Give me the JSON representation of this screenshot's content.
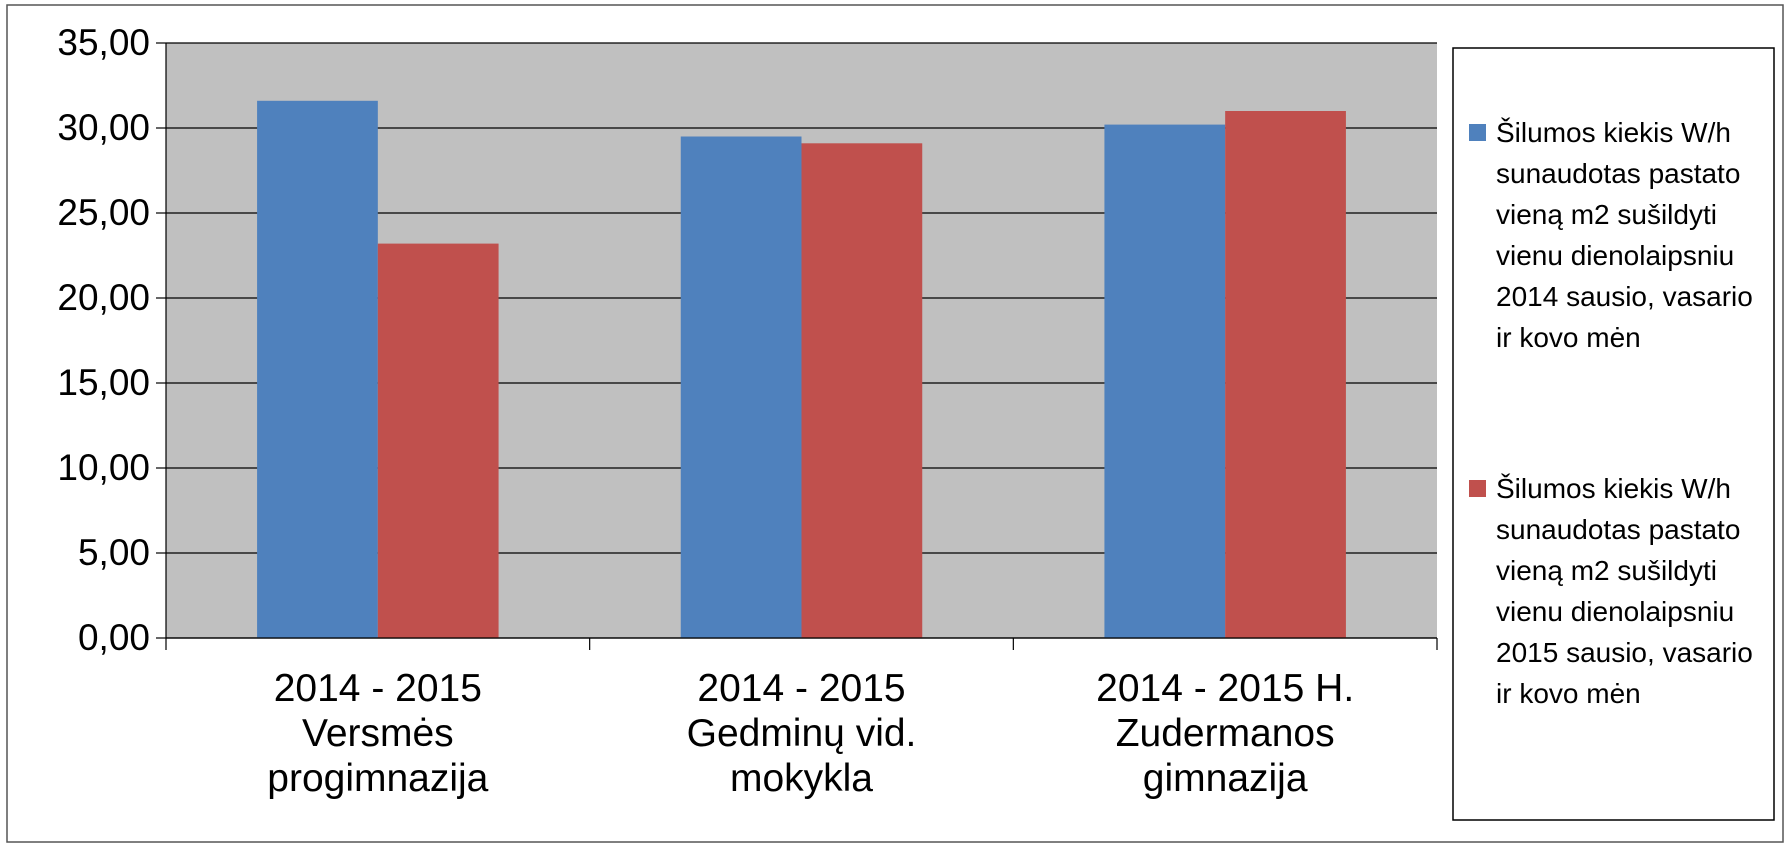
{
  "chart_data": {
    "type": "bar",
    "categories": [
      "2014 - 2015\nVersmės\nprogimnazija",
      "2014 - 2015\nGedminų vid.\nmokykla",
      "2014 - 2015 H.\nZudermanos\ngimnazija"
    ],
    "series": [
      {
        "name": "Šilumos kiekis W/h sunaudotas pastato vieną m2 sušildyti vienu dienolaipsniu 2014 sausio, vasario ir kovo mėn",
        "color": "#4f81bd",
        "values": [
          31.6,
          29.5,
          30.2
        ]
      },
      {
        "name": "Šilumos kiekis W/h sunaudotas pastato vieną m2 sušildyti vienu dienolaipsniu 2015 sausio, vasario ir kovo mėn",
        "color": "#c0504d",
        "values": [
          23.2,
          29.1,
          31.0
        ]
      }
    ],
    "ylim": [
      0,
      35
    ],
    "yticks": [
      {
        "value": 0,
        "label": "0,00"
      },
      {
        "value": 5,
        "label": "5,00"
      },
      {
        "value": 10,
        "label": "10,00"
      },
      {
        "value": 15,
        "label": "15,00"
      },
      {
        "value": 20,
        "label": "20,00"
      },
      {
        "value": 25,
        "label": "25,00"
      },
      {
        "value": 30,
        "label": "30,00"
      },
      {
        "value": 35,
        "label": "35,00"
      }
    ],
    "grid": true,
    "plot_background": "#c0c0c0",
    "legend": "right"
  }
}
